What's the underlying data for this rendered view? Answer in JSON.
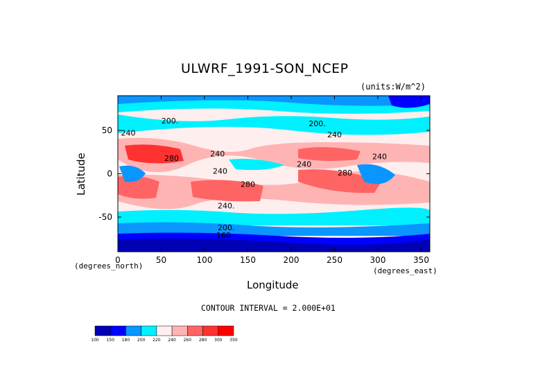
{
  "chart_data": {
    "type": "heatmap",
    "title": "ULWRF_1991-SON_NCEP",
    "units_label": "(units:W/m^2)",
    "xlabel": "Longitude",
    "ylabel": "Latitude",
    "x_unit_label": "(degrees_east)",
    "y_unit_label": "(degrees_north)",
    "xlim": [
      0,
      360
    ],
    "ylim": [
      -90,
      90
    ],
    "x_ticks": [
      0,
      50,
      100,
      150,
      200,
      250,
      300,
      350
    ],
    "y_ticks": [
      -50,
      0,
      50
    ],
    "contour_interval_text": "CONTOUR INTERVAL = 2.000E+01",
    "contour_labels": [
      {
        "text": "200.",
        "lon": 60,
        "lat": 58
      },
      {
        "text": "200.",
        "lon": 230,
        "lat": 55
      },
      {
        "text": "240",
        "lon": 12,
        "lat": 44
      },
      {
        "text": "240",
        "lon": 250,
        "lat": 42
      },
      {
        "text": "240",
        "lon": 115,
        "lat": 20
      },
      {
        "text": "240",
        "lon": 302,
        "lat": 17
      },
      {
        "text": "280",
        "lon": 62,
        "lat": 15
      },
      {
        "text": "240",
        "lon": 118,
        "lat": 0
      },
      {
        "text": "240",
        "lon": 215,
        "lat": 8
      },
      {
        "text": "280",
        "lon": 262,
        "lat": -2
      },
      {
        "text": "280",
        "lon": 150,
        "lat": -15
      },
      {
        "text": "240.",
        "lon": 125,
        "lat": -40
      },
      {
        "text": "200.",
        "lon": 125,
        "lat": -65
      },
      {
        "text": "160",
        "lon": 122,
        "lat": -74
      }
    ],
    "colorbar": {
      "levels": [
        100,
        150,
        180,
        200,
        220,
        240,
        260,
        280,
        300,
        350
      ],
      "colors": [
        "#0000b4",
        "#0000ff",
        "#0a96ff",
        "#00f0ff",
        "#ffeeee",
        "#ffb4b4",
        "#ff6464",
        "#ff3232",
        "#ff0000"
      ]
    }
  }
}
